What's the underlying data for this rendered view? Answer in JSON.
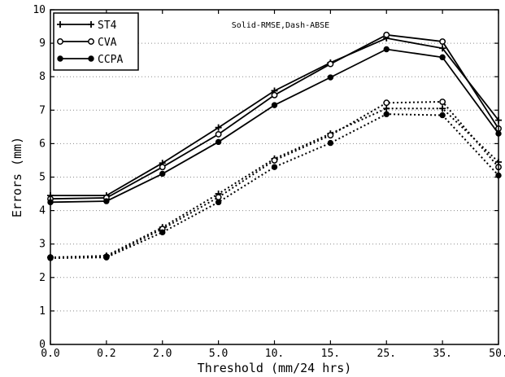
{
  "chart_data": {
    "type": "line",
    "title": "",
    "annotation": "Solid-RMSE,Dash-ABSE",
    "xlabel": "Threshold (mm/24 hrs)",
    "ylabel": "Errors (mm)",
    "categories": [
      "0.0",
      "0.2",
      "2.0",
      "5.0",
      "10.",
      "15.",
      "25.",
      "35.",
      "50."
    ],
    "yticks": [
      "0",
      "1",
      "2",
      "3",
      "4",
      "5",
      "6",
      "7",
      "8",
      "9",
      "10"
    ],
    "ylim": [
      0,
      10
    ],
    "grid": "horizontal-dotted",
    "legend_position": "top-left",
    "series": [
      {
        "name": "ST4",
        "marker": "plus",
        "line": "solid",
        "metric": "RMSE",
        "values": [
          4.45,
          4.45,
          5.42,
          6.48,
          7.58,
          8.42,
          9.15,
          8.85,
          6.7
        ]
      },
      {
        "name": "CVA",
        "marker": "open-circle",
        "line": "solid",
        "metric": "RMSE",
        "values": [
          4.35,
          4.38,
          5.3,
          6.28,
          7.45,
          8.38,
          9.25,
          9.05,
          6.45
        ]
      },
      {
        "name": "CCPA",
        "marker": "filled-circle",
        "line": "solid",
        "metric": "RMSE",
        "values": [
          4.25,
          4.28,
          5.1,
          6.05,
          7.15,
          7.98,
          8.82,
          8.58,
          6.3
        ]
      },
      {
        "name": "ST4",
        "marker": "plus",
        "line": "dotted",
        "metric": "ABSE",
        "values": [
          2.6,
          2.65,
          3.5,
          4.5,
          5.55,
          6.3,
          7.05,
          7.05,
          5.45
        ]
      },
      {
        "name": "CVA",
        "marker": "open-circle",
        "line": "dotted",
        "metric": "ABSE",
        "values": [
          2.6,
          2.62,
          3.45,
          4.4,
          5.5,
          6.25,
          7.22,
          7.25,
          5.3
        ]
      },
      {
        "name": "CCPA",
        "marker": "filled-circle",
        "line": "dotted",
        "metric": "ABSE",
        "values": [
          2.58,
          2.6,
          3.35,
          4.25,
          5.3,
          6.02,
          6.88,
          6.85,
          5.05
        ]
      }
    ],
    "legend": [
      {
        "name": "ST4",
        "marker": "plus"
      },
      {
        "name": "CVA",
        "marker": "open-circle"
      },
      {
        "name": "CCPA",
        "marker": "filled-circle"
      }
    ],
    "colors": {
      "line": "#000000",
      "grid": "#8a8a8a",
      "background": "#ffffff"
    }
  }
}
